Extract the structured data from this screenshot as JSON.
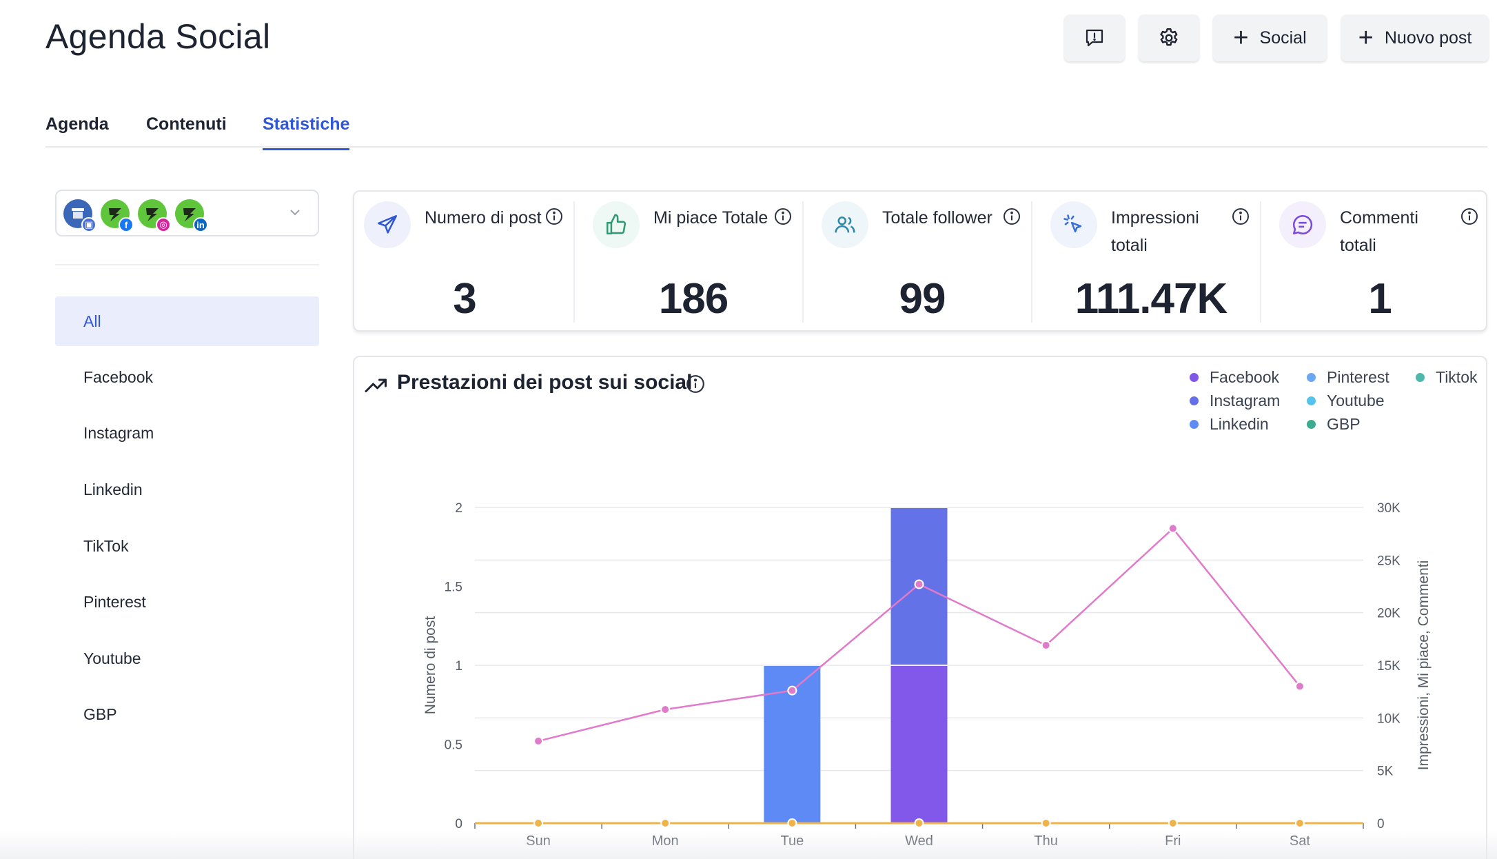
{
  "header": {
    "title": "Agenda Social",
    "social_btn": "Social",
    "new_post_btn": "Nuovo post"
  },
  "tabs": [
    {
      "label": "Agenda",
      "active": false
    },
    {
      "label": "Contenuti",
      "active": false
    },
    {
      "label": "Statistiche",
      "active": true
    }
  ],
  "sidebar": {
    "items": [
      {
        "label": "All",
        "active": true
      },
      {
        "label": "Facebook",
        "active": false
      },
      {
        "label": "Instagram",
        "active": false
      },
      {
        "label": "Linkedin",
        "active": false
      },
      {
        "label": "TikTok",
        "active": false
      },
      {
        "label": "Pinterest",
        "active": false
      },
      {
        "label": "Youtube",
        "active": false
      },
      {
        "label": "GBP",
        "active": false
      }
    ]
  },
  "stats": [
    {
      "label": "Numero di post",
      "value": "3",
      "icon": "send-icon",
      "bg": "#eef1fb",
      "color": "#3057d4"
    },
    {
      "label": "Mi piace Totale",
      "value": "186",
      "icon": "thumbs-up-icon",
      "bg": "#eef8f4",
      "color": "#2f9a73"
    },
    {
      "label": "Totale follower",
      "value": "99",
      "icon": "users-icon",
      "bg": "#eef6fa",
      "color": "#2c8aa8"
    },
    {
      "label": "Impressioni totali",
      "value": "111.47K",
      "icon": "cursor-click-icon",
      "bg": "#eef3fc",
      "color": "#3b6fd8"
    },
    {
      "label": "Commenti totali",
      "value": "1",
      "icon": "chat-icon",
      "bg": "#f3effc",
      "color": "#7b4ad9"
    }
  ],
  "chart_title": "Prestazioni dei post sui social",
  "legend": [
    {
      "name": "Facebook",
      "color": "#7f56e8"
    },
    {
      "name": "Instagram",
      "color": "#6470e8"
    },
    {
      "name": "Linkedin",
      "color": "#5d8cf5"
    },
    {
      "name": "Pinterest",
      "color": "#6aa9f2"
    },
    {
      "name": "Youtube",
      "color": "#56c3ec"
    },
    {
      "name": "GBP",
      "color": "#3dab8e"
    },
    {
      "name": "Tiktok",
      "color": "#4fb8ad"
    }
  ],
  "chart_data": {
    "type": "bar",
    "categories": [
      "Sun",
      "Mon",
      "Tue",
      "Wed",
      "Thu",
      "Fri",
      "Sat"
    ],
    "ylabel": "Numero di post",
    "y2label": "Impressioni, Mi piace, Commenti",
    "ylim": [
      0,
      2
    ],
    "y2lim": [
      0,
      30000
    ],
    "yticks": [
      "0",
      "0.5",
      "1",
      "1.5",
      "2"
    ],
    "y2ticks": [
      "0",
      "5K",
      "10K",
      "15K",
      "20K",
      "25K",
      "30K"
    ],
    "bars": [
      {
        "name": "Facebook",
        "color": "#8158ea",
        "values": [
          0,
          0,
          0,
          1,
          0,
          0,
          0
        ]
      },
      {
        "name": "Instagram",
        "color": "#6472e8",
        "values": [
          0,
          0,
          0,
          1,
          0,
          0,
          0
        ]
      },
      {
        "name": "Linkedin",
        "color": "#5e8af6",
        "values": [
          0,
          0,
          1,
          0,
          0,
          0,
          0
        ]
      }
    ],
    "lines": [
      {
        "color": "#e07acb",
        "axis": "right",
        "values": [
          7800,
          10800,
          12600,
          22700,
          16900,
          28000,
          13000
        ]
      },
      {
        "color": "#f0b34a",
        "axis": "right",
        "values": [
          0,
          0,
          0,
          0,
          0,
          0,
          0
        ]
      }
    ]
  }
}
